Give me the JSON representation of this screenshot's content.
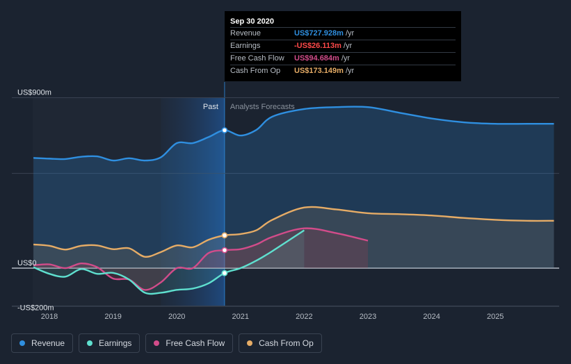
{
  "chart_data": {
    "type": "line",
    "y_axis_labels": [
      "US$900m",
      "US$0",
      "-US$200m"
    ],
    "ylim": [
      -200,
      900
    ],
    "x_ticks": [
      "2018",
      "2019",
      "2020",
      "2021",
      "2022",
      "2023",
      "2024",
      "2025"
    ],
    "past_label": "Past",
    "forecast_label": "Analysts Forecasts",
    "divider_x": 2020.75,
    "series": [
      {
        "name": "Revenue",
        "color": "#2f8fe0",
        "x": [
          2017.75,
          2018.0,
          2018.25,
          2018.5,
          2018.75,
          2019.0,
          2019.25,
          2019.5,
          2019.75,
          2020.0,
          2020.25,
          2020.5,
          2020.75,
          2021.0,
          2021.25,
          2021.5,
          2022.0,
          2022.5,
          2023.0,
          2023.5,
          2024.0,
          2024.5,
          2025.0,
          2025.5,
          2025.92
        ],
        "y": [
          582,
          578,
          576,
          588,
          590,
          568,
          580,
          568,
          585,
          660,
          660,
          692,
          728,
          700,
          730,
          800,
          840,
          850,
          850,
          820,
          790,
          770,
          762,
          762,
          762
        ]
      },
      {
        "name": "Earnings",
        "color": "#5fe0cf",
        "x": [
          2017.75,
          2018.0,
          2018.25,
          2018.5,
          2018.75,
          2019.0,
          2019.25,
          2019.5,
          2019.75,
          2020.0,
          2020.25,
          2020.5,
          2020.75,
          2021.0,
          2021.25,
          2021.5,
          2022.0
        ],
        "y": [
          5,
          -30,
          -45,
          -5,
          -30,
          -25,
          -60,
          -130,
          -130,
          -115,
          -108,
          -80,
          -26,
          0,
          40,
          90,
          200
        ]
      },
      {
        "name": "Free Cash Flow",
        "color": "#d24c8a",
        "x": [
          2017.75,
          2018.0,
          2018.25,
          2018.5,
          2018.75,
          2019.0,
          2019.25,
          2019.5,
          2019.75,
          2020.0,
          2020.25,
          2020.5,
          2020.75,
          2021.0,
          2021.25,
          2021.5,
          2022.0,
          2022.5,
          2023.0
        ],
        "y": [
          15,
          20,
          0,
          25,
          5,
          -55,
          -60,
          -115,
          -75,
          0,
          0,
          80,
          95,
          100,
          125,
          165,
          210,
          185,
          145
        ]
      },
      {
        "name": "Cash From Op",
        "color": "#e6ac66",
        "x": [
          2017.75,
          2018.0,
          2018.25,
          2018.5,
          2018.75,
          2019.0,
          2019.25,
          2019.5,
          2019.75,
          2020.0,
          2020.25,
          2020.5,
          2020.75,
          2021.0,
          2021.25,
          2021.5,
          2022.0,
          2022.5,
          2023.0,
          2023.5,
          2024.0,
          2024.5,
          2025.0,
          2025.5,
          2025.92
        ],
        "y": [
          125,
          118,
          98,
          118,
          120,
          100,
          105,
          60,
          85,
          120,
          110,
          150,
          173,
          180,
          200,
          255,
          320,
          310,
          290,
          285,
          278,
          265,
          255,
          250,
          250
        ]
      }
    ]
  },
  "tooltip": {
    "date": "Sep 30 2020",
    "rows": [
      {
        "label": "Revenue",
        "value": "US$727.928m",
        "unit": "/yr",
        "color": "#2f8fe0"
      },
      {
        "label": "Earnings",
        "value": "-US$26.113m",
        "unit": "/yr",
        "color": "#ff4a4a"
      },
      {
        "label": "Free Cash Flow",
        "value": "US$94.684m",
        "unit": "/yr",
        "color": "#d24c8a"
      },
      {
        "label": "Cash From Op",
        "value": "US$173.149m",
        "unit": "/yr",
        "color": "#e6ac66"
      }
    ]
  },
  "legend": [
    {
      "label": "Revenue",
      "color": "#2f8fe0"
    },
    {
      "label": "Earnings",
      "color": "#5fe0cf"
    },
    {
      "label": "Free Cash Flow",
      "color": "#d24c8a"
    },
    {
      "label": "Cash From Op",
      "color": "#e6ac66"
    }
  ]
}
